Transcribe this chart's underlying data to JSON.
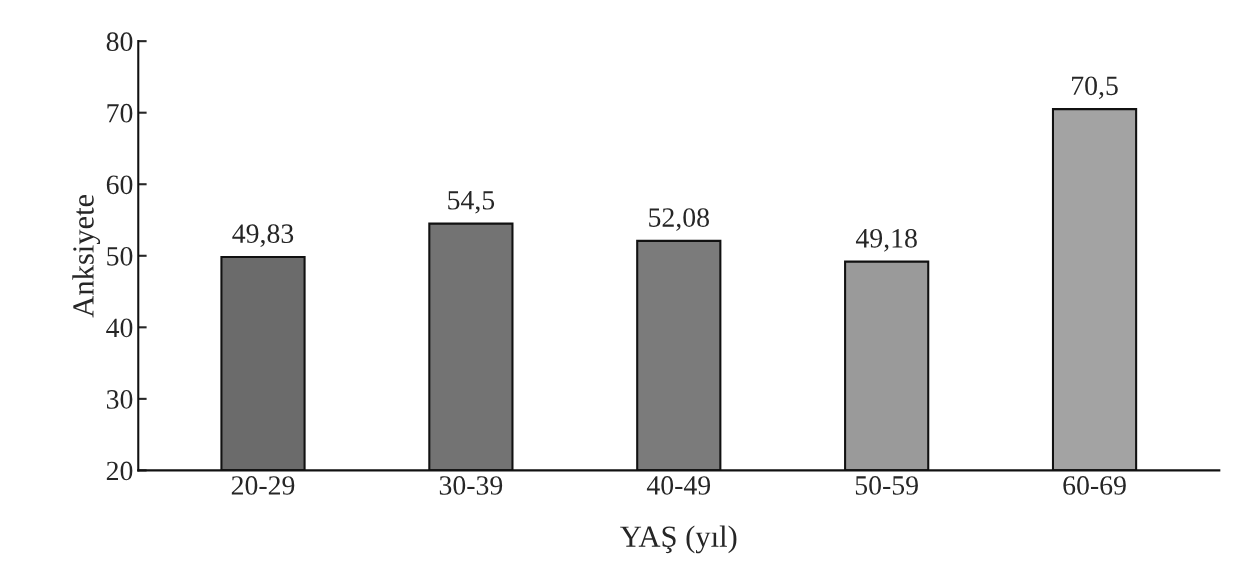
{
  "chart_data": {
    "type": "bar",
    "xlabel": "YAŞ (yıl)",
    "ylabel": "Anksiyete",
    "categories": [
      "20-29",
      "30-39",
      "40-49",
      "50-59",
      "60-69"
    ],
    "values": [
      49.83,
      54.5,
      52.08,
      49.18,
      70.5
    ],
    "value_labels": [
      "49,83",
      "54,5",
      "52,08",
      "49,18",
      "70,5"
    ],
    "colors": [
      "#6b6b6b",
      "#737373",
      "#7b7b7b",
      "#9a9a9a",
      "#a3a3a3"
    ],
    "ylim": [
      20,
      80
    ],
    "yticks": [
      20,
      30,
      40,
      50,
      60,
      70,
      80
    ],
    "grid": false,
    "legend": false
  }
}
